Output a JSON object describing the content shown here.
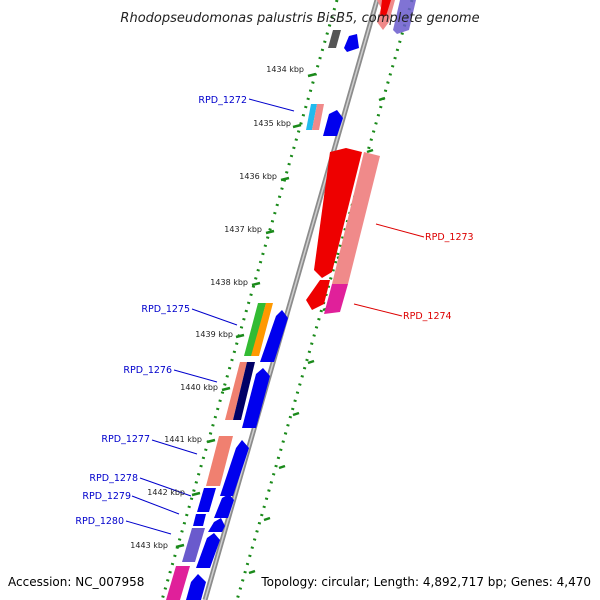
{
  "title": "Rhodopseudomonas palustris BisB5, complete genome",
  "footer": {
    "accession": "Accession: NC_007958",
    "summary": "Topology: circular; Length: 4,892,717 bp; Genes: 4,470"
  },
  "ticks": [
    "1434 kbp",
    "1435 kbp",
    "1436 kbp",
    "1437 kbp",
    "1438 kbp",
    "1439 kbp",
    "1440 kbp",
    "1441 kbp",
    "1442 kbp",
    "1443 kbp"
  ],
  "gene_labels": [
    {
      "text": "RPD_1272",
      "color": "#0000cc"
    },
    {
      "text": "RPD_1273",
      "color": "#dd0000"
    },
    {
      "text": "RPD_1274",
      "color": "#dd0000"
    },
    {
      "text": "RPD_1275",
      "color": "#0000cc"
    },
    {
      "text": "RPD_1276",
      "color": "#0000cc"
    },
    {
      "text": "RPD_1277",
      "color": "#0000cc"
    },
    {
      "text": "RPD_1278",
      "color": "#0000cc"
    },
    {
      "text": "RPD_1279",
      "color": "#0000cc"
    },
    {
      "text": "RPD_1280",
      "color": "#0000cc"
    }
  ],
  "colors": {
    "backbone": "#8c8c8c",
    "dotted_ring": "#1a8a1a",
    "forward_gene": "#0000ee",
    "reverse_gene": "#ee0000",
    "reverse_light": "#f08a8a",
    "magenta": "#e0209a",
    "green": "#33bb33",
    "orange": "#ff9900",
    "salmon": "#f08070",
    "navy": "#000066",
    "cyan": "#22bbee",
    "slate": "#6a5acd",
    "dark_gray": "#555555"
  }
}
